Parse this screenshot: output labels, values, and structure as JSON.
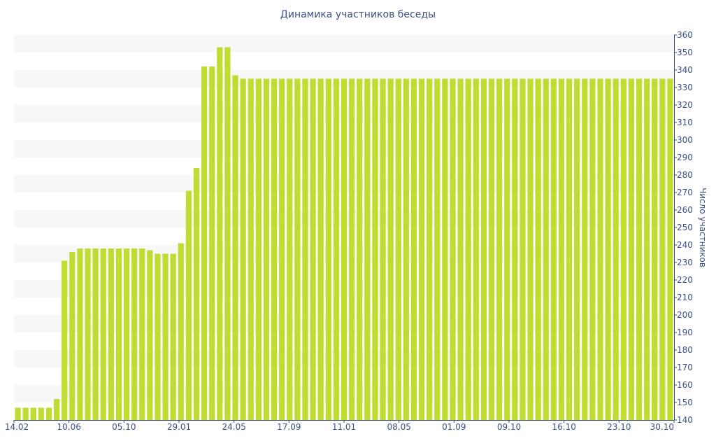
{
  "chart_data": {
    "type": "bar",
    "title": "Динамика участников беседы",
    "ylabel": "Число участников",
    "xlabel": "",
    "ylim": [
      140,
      360
    ],
    "y_ticks": [
      140,
      150,
      160,
      170,
      180,
      190,
      200,
      210,
      220,
      230,
      240,
      250,
      260,
      270,
      280,
      290,
      300,
      310,
      320,
      330,
      340,
      350,
      360
    ],
    "x_tick_labels": [
      "14.02",
      "10.06",
      "05.10",
      "29.01",
      "24.05",
      "17.09",
      "11.01",
      "08.05",
      "01.09",
      "09.10",
      "16.10",
      "23.10",
      "30.10"
    ],
    "grid": "horizontal bands",
    "y_axis_position": "right",
    "bar_color": "#bedd30",
    "band_color": "#f7f7f7",
    "values": [
      147,
      147,
      147,
      147,
      147,
      152,
      231,
      236,
      238,
      238,
      238,
      238,
      238,
      238,
      238,
      238,
      238,
      237,
      235,
      235,
      235,
      241,
      271,
      284,
      342,
      342,
      353,
      353,
      337,
      335,
      335,
      335,
      335,
      335,
      335,
      335,
      335,
      335,
      335,
      335,
      335,
      335,
      335,
      335,
      335,
      335,
      335,
      335,
      335,
      335,
      335,
      335,
      335,
      335,
      335,
      335,
      335,
      335,
      335,
      335,
      335,
      335,
      335,
      335,
      335,
      335,
      335,
      335,
      335,
      335,
      335,
      335,
      335,
      335,
      335,
      335,
      335,
      335,
      335,
      335,
      335,
      335,
      335,
      335,
      335
    ]
  }
}
